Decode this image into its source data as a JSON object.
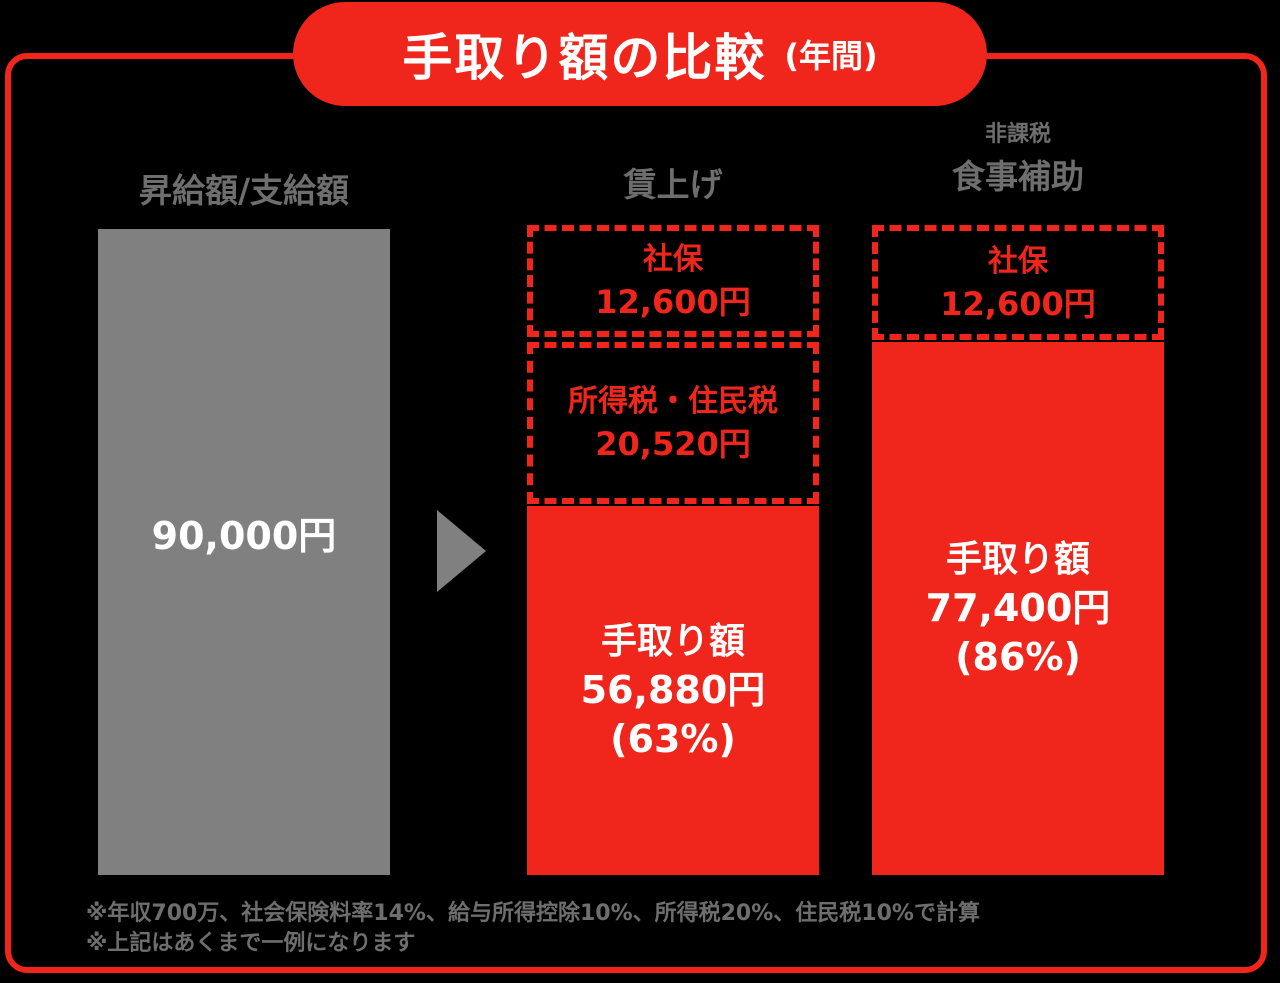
{
  "chart_data": {
    "type": "bar",
    "title": "手取り額の比較",
    "title_suffix": "(年間)",
    "columns": [
      {
        "label": "昇給額/支給額",
        "total_text": "90,000円",
        "total": 90000
      },
      {
        "label": "賃上げ",
        "segments": [
          {
            "name": "手取り額",
            "amount_text": "56,880円",
            "percent_text": "(63%)",
            "value": 56880
          },
          {
            "name": "所得税・住民税",
            "amount_text": "20,520円",
            "value": 20520
          },
          {
            "name": "社保",
            "amount_text": "12,600円",
            "value": 12600
          }
        ]
      },
      {
        "label": "食事補助",
        "sublabel": "非課税",
        "segments": [
          {
            "name": "手取り額",
            "amount_text": "77,400円",
            "percent_text": "(86%)",
            "value": 77400
          },
          {
            "name": "社保",
            "amount_text": "12,600円",
            "value": 12600
          }
        ]
      }
    ],
    "footnotes": [
      "※年収700万、社会保険料率14%、給与所得控除10%、所得税20%、住民税10%で計算",
      "※上記はあくまで一例になります"
    ],
    "colors": {
      "accent": "#f0251b",
      "gray_bar": "#808080",
      "muted_text": "#6e6e6e",
      "background": "#000000"
    }
  }
}
